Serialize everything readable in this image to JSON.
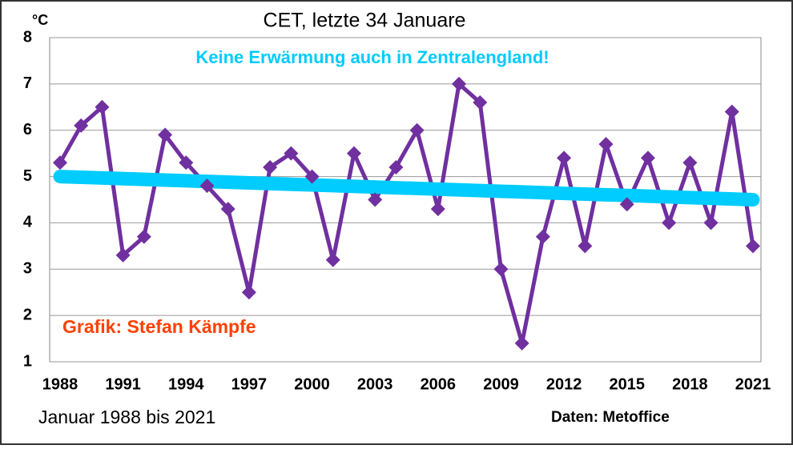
{
  "chart_data": {
    "type": "line",
    "title": "CET, letzte 34 Januare",
    "y_unit": "°C",
    "annotations": [
      "Keine Erwärmung auch in Zentralengland!",
      "Grafik: Stefan Kämpfe"
    ],
    "footer_left": "Januar 1988 bis 2021",
    "footer_right": "Daten: Metoffice",
    "categories": [
      "1988",
      null,
      null,
      "1991",
      null,
      null,
      "1994",
      null,
      null,
      "1997",
      null,
      null,
      "2000",
      null,
      null,
      "2003",
      null,
      null,
      "2006",
      null,
      null,
      "2009",
      null,
      null,
      "2012",
      null,
      null,
      "2015",
      null,
      null,
      "2018",
      null,
      null,
      "2021"
    ],
    "series": [
      {
        "color": "#7030a0",
        "values": [
          5.3,
          6.1,
          6.5,
          3.3,
          3.7,
          5.9,
          5.3,
          4.8,
          4.3,
          2.5,
          5.2,
          5.5,
          5.0,
          3.2,
          5.5,
          4.5,
          5.2,
          6.0,
          4.3,
          7.0,
          6.6,
          3.0,
          1.4,
          3.7,
          5.4,
          3.5,
          5.7,
          4.4,
          5.4,
          4.0,
          5.3,
          4.0,
          6.4,
          3.5
        ]
      }
    ],
    "trend": {
      "color": "#00ccff",
      "start": 5.0,
      "end": 4.5
    },
    "ylim": [
      1,
      8
    ],
    "yticks": [
      1,
      2,
      3,
      4,
      5,
      6,
      7,
      8
    ],
    "grid": true
  }
}
